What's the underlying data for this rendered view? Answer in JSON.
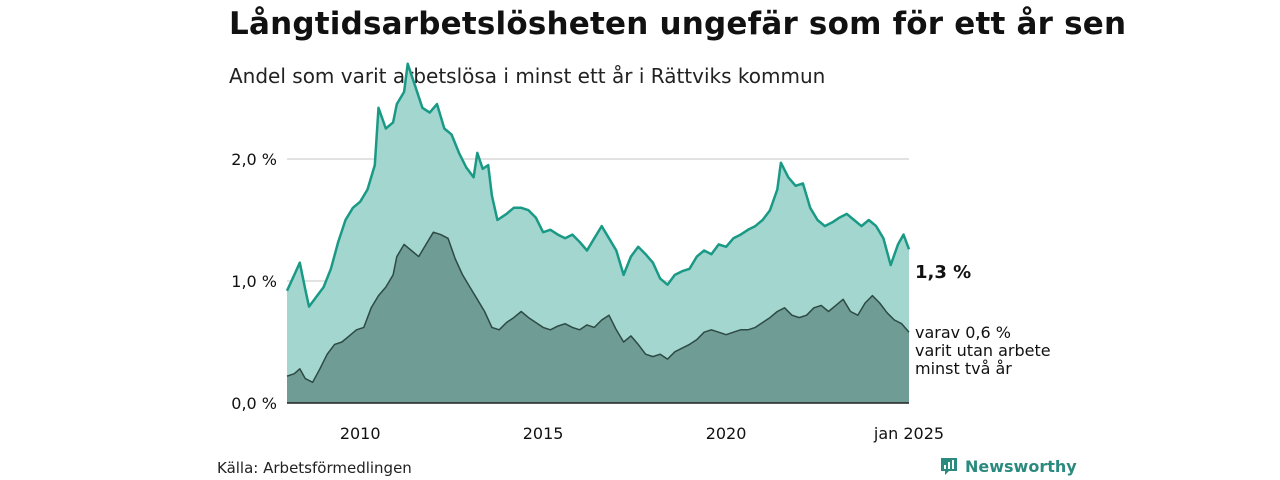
{
  "title": "Långtidsarbetslösheten ungefär som för ett år sen",
  "subtitle": "Andel som varit arbetslösa i minst ett år i Rättviks kommun",
  "source": "Källa: Arbetsförmedlingen",
  "brand": "Newsworthy",
  "end_label": "1,3 %",
  "sub_label": {
    "line1": "varav 0,6 %",
    "line2": "varit utan arbete",
    "line3": "minst två år"
  },
  "colors": {
    "total_line": "#1a9a86",
    "total_fill": "#a3d6cf",
    "sub_line": "#2d4a44",
    "sub_fill": "#6f9c95",
    "grid": "#d9d9d9",
    "brand": "#2b8a7e"
  },
  "chart_data": {
    "type": "area",
    "xlim": [
      2008.0,
      2025.0
    ],
    "ylim": [
      0,
      2.5
    ],
    "y_ticks": [
      {
        "value": 0,
        "label": "0,0 %"
      },
      {
        "value": 1,
        "label": "1,0 %"
      },
      {
        "value": 2,
        "label": "2,0 %"
      }
    ],
    "x_ticks": [
      {
        "value": 2010,
        "label": "2010"
      },
      {
        "value": 2015,
        "label": "2015"
      },
      {
        "value": 2020,
        "label": "2020"
      },
      {
        "value": 2025,
        "label": "jan 2025"
      }
    ],
    "series": [
      {
        "points": [
          [
            2008.0,
            0.92
          ],
          [
            2008.2,
            1.05
          ],
          [
            2008.35,
            1.15
          ],
          [
            2008.5,
            0.93
          ],
          [
            2008.6,
            0.79
          ],
          [
            2008.8,
            0.87
          ],
          [
            2009.0,
            0.95
          ],
          [
            2009.2,
            1.1
          ],
          [
            2009.4,
            1.32
          ],
          [
            2009.6,
            1.5
          ],
          [
            2009.8,
            1.6
          ],
          [
            2010.0,
            1.65
          ],
          [
            2010.2,
            1.75
          ],
          [
            2010.4,
            1.95
          ],
          [
            2010.5,
            2.42
          ],
          [
            2010.7,
            2.25
          ],
          [
            2010.9,
            2.3
          ],
          [
            2011.0,
            2.45
          ],
          [
            2011.2,
            2.55
          ],
          [
            2011.3,
            2.78
          ],
          [
            2011.5,
            2.6
          ],
          [
            2011.7,
            2.42
          ],
          [
            2011.9,
            2.38
          ],
          [
            2012.1,
            2.45
          ],
          [
            2012.3,
            2.25
          ],
          [
            2012.5,
            2.2
          ],
          [
            2012.7,
            2.05
          ],
          [
            2012.9,
            1.93
          ],
          [
            2013.1,
            1.85
          ],
          [
            2013.2,
            2.05
          ],
          [
            2013.35,
            1.92
          ],
          [
            2013.5,
            1.95
          ],
          [
            2013.6,
            1.7
          ],
          [
            2013.75,
            1.5
          ],
          [
            2014.0,
            1.55
          ],
          [
            2014.2,
            1.6
          ],
          [
            2014.4,
            1.6
          ],
          [
            2014.6,
            1.58
          ],
          [
            2014.8,
            1.52
          ],
          [
            2015.0,
            1.4
          ],
          [
            2015.2,
            1.42
          ],
          [
            2015.4,
            1.38
          ],
          [
            2015.6,
            1.35
          ],
          [
            2015.8,
            1.38
          ],
          [
            2016.0,
            1.32
          ],
          [
            2016.2,
            1.25
          ],
          [
            2016.4,
            1.35
          ],
          [
            2016.6,
            1.45
          ],
          [
            2016.8,
            1.35
          ],
          [
            2017.0,
            1.25
          ],
          [
            2017.2,
            1.05
          ],
          [
            2017.4,
            1.2
          ],
          [
            2017.6,
            1.28
          ],
          [
            2017.8,
            1.22
          ],
          [
            2018.0,
            1.15
          ],
          [
            2018.2,
            1.02
          ],
          [
            2018.4,
            0.97
          ],
          [
            2018.6,
            1.05
          ],
          [
            2018.8,
            1.08
          ],
          [
            2019.0,
            1.1
          ],
          [
            2019.2,
            1.2
          ],
          [
            2019.4,
            1.25
          ],
          [
            2019.6,
            1.22
          ],
          [
            2019.8,
            1.3
          ],
          [
            2020.0,
            1.28
          ],
          [
            2020.2,
            1.35
          ],
          [
            2020.4,
            1.38
          ],
          [
            2020.6,
            1.42
          ],
          [
            2020.8,
            1.45
          ],
          [
            2021.0,
            1.5
          ],
          [
            2021.2,
            1.58
          ],
          [
            2021.4,
            1.75
          ],
          [
            2021.5,
            1.97
          ],
          [
            2021.7,
            1.85
          ],
          [
            2021.9,
            1.78
          ],
          [
            2022.1,
            1.8
          ],
          [
            2022.3,
            1.6
          ],
          [
            2022.5,
            1.5
          ],
          [
            2022.7,
            1.45
          ],
          [
            2022.9,
            1.48
          ],
          [
            2023.1,
            1.52
          ],
          [
            2023.3,
            1.55
          ],
          [
            2023.5,
            1.5
          ],
          [
            2023.7,
            1.45
          ],
          [
            2023.9,
            1.5
          ],
          [
            2024.1,
            1.45
          ],
          [
            2024.3,
            1.35
          ],
          [
            2024.5,
            1.13
          ],
          [
            2024.7,
            1.3
          ],
          [
            2024.85,
            1.38
          ],
          [
            2025.0,
            1.26
          ]
        ]
      },
      {
        "points": [
          [
            2008.0,
            0.22
          ],
          [
            2008.2,
            0.24
          ],
          [
            2008.35,
            0.28
          ],
          [
            2008.5,
            0.2
          ],
          [
            2008.7,
            0.17
          ],
          [
            2008.9,
            0.28
          ],
          [
            2009.1,
            0.4
          ],
          [
            2009.3,
            0.48
          ],
          [
            2009.5,
            0.5
          ],
          [
            2009.7,
            0.55
          ],
          [
            2009.9,
            0.6
          ],
          [
            2010.1,
            0.62
          ],
          [
            2010.3,
            0.78
          ],
          [
            2010.5,
            0.88
          ],
          [
            2010.7,
            0.95
          ],
          [
            2010.9,
            1.05
          ],
          [
            2011.0,
            1.2
          ],
          [
            2011.2,
            1.3
          ],
          [
            2011.4,
            1.25
          ],
          [
            2011.6,
            1.2
          ],
          [
            2011.8,
            1.3
          ],
          [
            2012.0,
            1.4
          ],
          [
            2012.2,
            1.38
          ],
          [
            2012.4,
            1.35
          ],
          [
            2012.6,
            1.18
          ],
          [
            2012.8,
            1.05
          ],
          [
            2013.0,
            0.95
          ],
          [
            2013.2,
            0.85
          ],
          [
            2013.4,
            0.75
          ],
          [
            2013.6,
            0.62
          ],
          [
            2013.8,
            0.6
          ],
          [
            2014.0,
            0.66
          ],
          [
            2014.2,
            0.7
          ],
          [
            2014.4,
            0.75
          ],
          [
            2014.6,
            0.7
          ],
          [
            2014.8,
            0.66
          ],
          [
            2015.0,
            0.62
          ],
          [
            2015.2,
            0.6
          ],
          [
            2015.4,
            0.63
          ],
          [
            2015.6,
            0.65
          ],
          [
            2015.8,
            0.62
          ],
          [
            2016.0,
            0.6
          ],
          [
            2016.2,
            0.64
          ],
          [
            2016.4,
            0.62
          ],
          [
            2016.6,
            0.68
          ],
          [
            2016.8,
            0.72
          ],
          [
            2017.0,
            0.6
          ],
          [
            2017.2,
            0.5
          ],
          [
            2017.4,
            0.55
          ],
          [
            2017.6,
            0.48
          ],
          [
            2017.8,
            0.4
          ],
          [
            2018.0,
            0.38
          ],
          [
            2018.2,
            0.4
          ],
          [
            2018.4,
            0.36
          ],
          [
            2018.6,
            0.42
          ],
          [
            2018.8,
            0.45
          ],
          [
            2019.0,
            0.48
          ],
          [
            2019.2,
            0.52
          ],
          [
            2019.4,
            0.58
          ],
          [
            2019.6,
            0.6
          ],
          [
            2019.8,
            0.58
          ],
          [
            2020.0,
            0.56
          ],
          [
            2020.2,
            0.58
          ],
          [
            2020.4,
            0.6
          ],
          [
            2020.6,
            0.6
          ],
          [
            2020.8,
            0.62
          ],
          [
            2021.0,
            0.66
          ],
          [
            2021.2,
            0.7
          ],
          [
            2021.4,
            0.75
          ],
          [
            2021.6,
            0.78
          ],
          [
            2021.8,
            0.72
          ],
          [
            2022.0,
            0.7
          ],
          [
            2022.2,
            0.72
          ],
          [
            2022.4,
            0.78
          ],
          [
            2022.6,
            0.8
          ],
          [
            2022.8,
            0.75
          ],
          [
            2023.0,
            0.8
          ],
          [
            2023.2,
            0.85
          ],
          [
            2023.4,
            0.75
          ],
          [
            2023.6,
            0.72
          ],
          [
            2023.8,
            0.82
          ],
          [
            2024.0,
            0.88
          ],
          [
            2024.2,
            0.82
          ],
          [
            2024.4,
            0.74
          ],
          [
            2024.6,
            0.68
          ],
          [
            2024.8,
            0.65
          ],
          [
            2025.0,
            0.58
          ]
        ]
      }
    ]
  }
}
